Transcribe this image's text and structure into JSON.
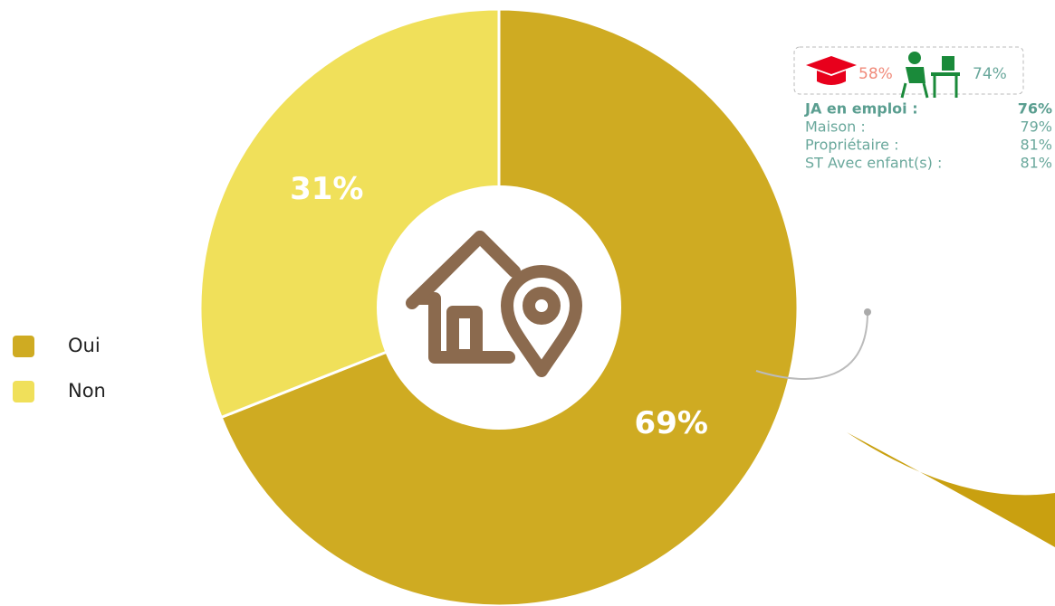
{
  "chart_data": {
    "type": "pie",
    "categories": [
      "Oui",
      "Non"
    ],
    "values": [
      69,
      31
    ],
    "value_labels": [
      "69%",
      "31%"
    ],
    "colors": [
      "#cfab22",
      "#f0e05a"
    ],
    "legend": "left"
  },
  "annotation": {
    "badges": [
      "58%",
      "74%"
    ],
    "rows": [
      [
        "JA en emploi :",
        "76%"
      ],
      [
        "Maison :",
        "79%"
      ],
      [
        "Propriétaire :",
        "81%"
      ],
      [
        "ST Avec enfant(s) :",
        "81%"
      ]
    ]
  }
}
